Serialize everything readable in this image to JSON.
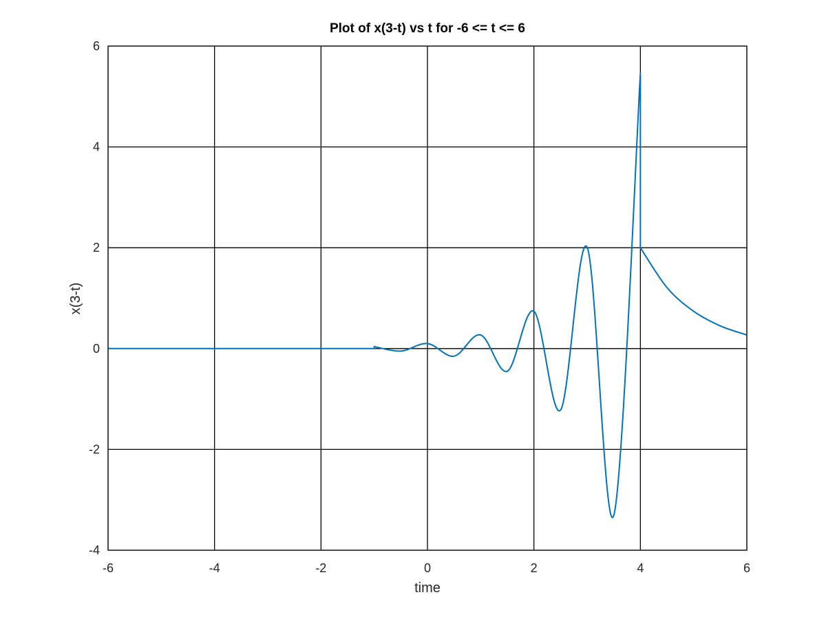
{
  "chart_data": {
    "type": "line",
    "title": "Plot of x(3-t) vs t for -6 <= t <= 6",
    "xlabel": "time",
    "ylabel": "x(3-t)",
    "xlim": [
      -6,
      6
    ],
    "ylim": [
      -4,
      6
    ],
    "xticks": [
      -6,
      -4,
      -2,
      0,
      2,
      4,
      6
    ],
    "xtick_labels": [
      "-6",
      "-4",
      "-2",
      "0",
      "2",
      "4",
      "6"
    ],
    "yticks": [
      -4,
      -2,
      0,
      2,
      4,
      6
    ],
    "ytick_labels": [
      "-4",
      "-2",
      "0",
      "2",
      "4",
      "6"
    ],
    "grid": true,
    "colors": {
      "series": "#0072BD",
      "grid": "#000000",
      "axis": "#262626"
    },
    "series": [
      {
        "segments": [
          {
            "description": "zero",
            "x": [
              -6,
              -1
            ],
            "y": [
              0,
              0
            ]
          },
          {
            "description": "oscillation: y = 0.1*exp(t)*cos(pi*t) style, read from plot",
            "x": [
              -1.0,
              -0.5,
              0.0,
              0.5,
              1.0,
              1.5,
              2.0,
              2.5,
              3.0,
              3.5,
              4.0
            ],
            "y": [
              0.04,
              -0.05,
              0.1,
              -0.15,
              0.27,
              -0.45,
              0.74,
              -1.22,
              2.01,
              -3.31,
              5.46
            ]
          },
          {
            "description": "exponential decay",
            "x": [
              4.0,
              4.5,
              5.0,
              5.5,
              6.0
            ],
            "y": [
              2.0,
              1.21,
              0.74,
              0.45,
              0.27
            ]
          }
        ]
      }
    ]
  }
}
